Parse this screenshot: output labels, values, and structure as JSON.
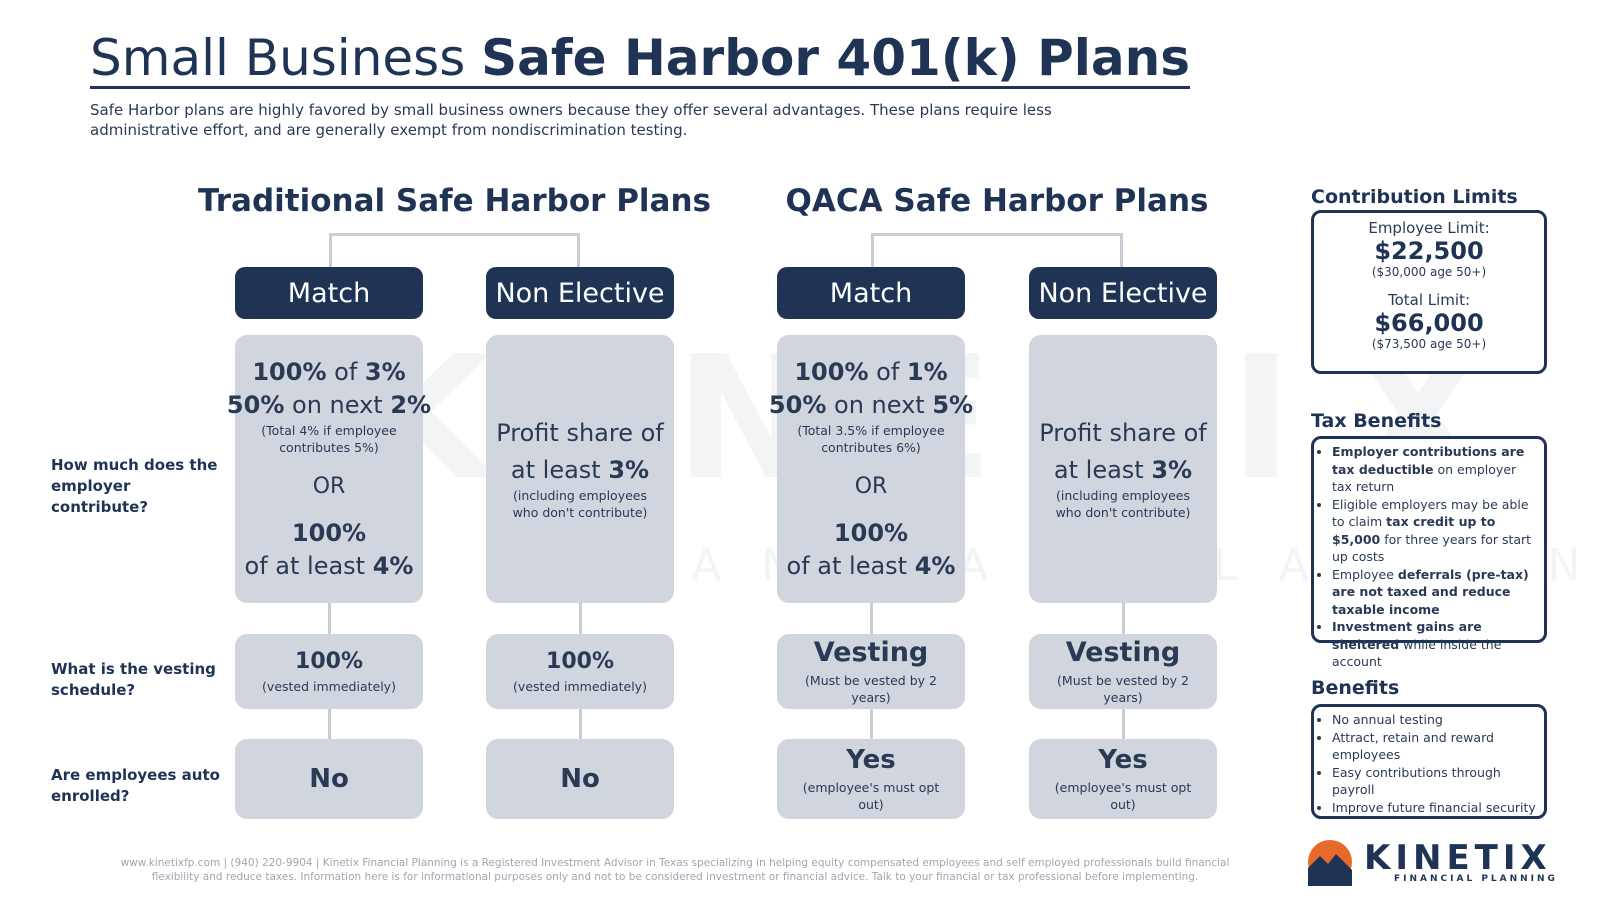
{
  "header": {
    "title_light": "Small Business ",
    "title_bold": "Safe Harbor 401(k) Plans",
    "subtitle": "Safe Harbor plans are highly favored by small business owners because they offer several advantages. These plans require less administrative effort, and are generally exempt from nondiscrimination testing."
  },
  "questions": [
    "How much does the employer contribute?",
    "What is the vesting schedule?",
    "Are employees auto enrolled?"
  ],
  "plans": [
    {
      "title": "Traditional Safe Harbor Plans",
      "columns": [
        {
          "label": "Match",
          "contribution": {
            "lines": [
              [
                {
                  "bold": "100%"
                },
                " of ",
                {
                  "bold": "3%"
                }
              ],
              [
                {
                  "bold": "50%"
                },
                " on next ",
                {
                  "bold": "2%"
                }
              ]
            ],
            "note": "(Total 4% if employee contributes 5%)",
            "or": "OR",
            "alt": [
              [
                {
                  "bold": "100%"
                }
              ],
              [
                "of at least ",
                {
                  "bold": "4%"
                }
              ]
            ]
          },
          "vesting": {
            "main": "100%",
            "note": "(vested immediately)"
          },
          "auto": {
            "main": "No"
          }
        },
        {
          "label": "Non Elective",
          "contribution": {
            "lines": [
              [
                "Profit share of"
              ],
              [
                "at least ",
                {
                  "bold": "3%"
                }
              ]
            ],
            "note": "(including employees who don't contribute)"
          },
          "vesting": {
            "main": "100%",
            "note": "(vested immediately)"
          },
          "auto": {
            "main": "No"
          }
        }
      ]
    },
    {
      "title": "QACA Safe Harbor Plans",
      "columns": [
        {
          "label": "Match",
          "contribution": {
            "lines": [
              [
                {
                  "bold": "100%"
                },
                " of ",
                {
                  "bold": "1%"
                }
              ],
              [
                {
                  "bold": "50%"
                },
                " on next ",
                {
                  "bold": "5%"
                }
              ]
            ],
            "note": "(Total 3.5% if employee contributes 6%)",
            "or": "OR",
            "alt": [
              [
                {
                  "bold": "100%"
                }
              ],
              [
                "of at least ",
                {
                  "bold": "4%"
                }
              ]
            ]
          },
          "vesting": {
            "main": "Vesting",
            "note": "(Must be vested by 2 years)"
          },
          "auto": {
            "main": "Yes",
            "note": "(employee's must opt out)"
          }
        },
        {
          "label": "Non Elective",
          "contribution": {
            "lines": [
              [
                "Profit share of"
              ],
              [
                "at least ",
                {
                  "bold": "3%"
                }
              ]
            ],
            "note": "(including employees who don't contribute)"
          },
          "vesting": {
            "main": "Vesting",
            "note": "(Must be vested by 2 years)"
          },
          "auto": {
            "main": "Yes",
            "note": "(employee's must opt out)"
          }
        }
      ]
    }
  ],
  "sidebar": {
    "limits": {
      "title": "Contribution Limits",
      "employee_label": "Employee Limit:",
      "employee_value": "$22,500",
      "employee_note": "($30,000 age 50+)",
      "total_label": "Total Limit:",
      "total_value": "$66,000",
      "total_note": "($73,500 age 50+)"
    },
    "tax": {
      "title": "Tax Benefits",
      "items": [
        [
          {
            "bold": "Employer contributions are tax deductible"
          },
          " on employer tax return"
        ],
        [
          "Eligible employers may be able to claim ",
          {
            "bold": "tax credit up to $5,000"
          },
          " for three years for start up costs"
        ],
        [
          "Employee ",
          {
            "bold": "deferrals (pre-tax) are not taxed and reduce taxable income"
          }
        ],
        [
          {
            "bold": "Investment gains are sheltered"
          },
          " while inside the account"
        ]
      ]
    },
    "benefits": {
      "title": "Benefits",
      "items": [
        "No annual testing",
        "Attract, retain and reward employees",
        "Easy contributions through payroll",
        "Improve future financial security"
      ]
    }
  },
  "footer": "www.kinetixfp.com | (940) 220-9904 | Kinetix Financial Planning is a Registered Investment Advisor in Texas specializing in helping equity compensated employees and self employed professionals build financial flexibility and reduce taxes. Information here is for informational purposes only and not to be considered investment or financial advice. Talk to your financial or tax professional before implementing.",
  "logo": {
    "name": "KINETIX",
    "tagline": "FINANCIAL PLANNING"
  }
}
